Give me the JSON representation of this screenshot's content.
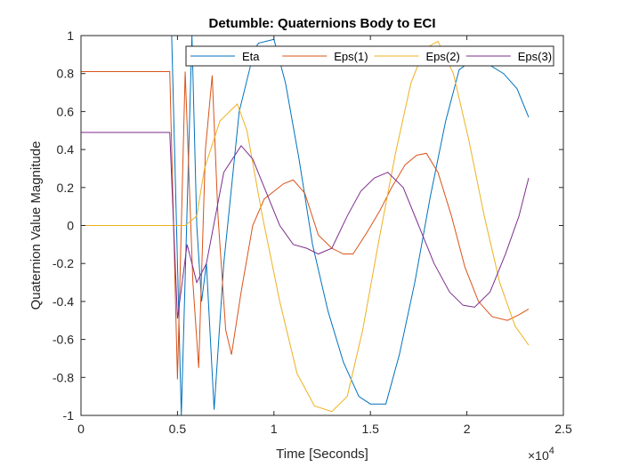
{
  "chart_data": {
    "type": "line",
    "title": "Detumble: Quaternions Body to ECI",
    "xlabel": "Time [Seconds]",
    "ylabel": "Quaternion Value Magnitude",
    "xlim": [
      0,
      25000
    ],
    "ylim": [
      -1,
      1
    ],
    "x_ticks": [
      0,
      5000,
      10000,
      15000,
      20000,
      25000
    ],
    "x_tick_labels": [
      "0",
      "0.5",
      "1",
      "1.5",
      "2",
      "2.5"
    ],
    "x_exponent_label": "×10",
    "x_exponent_power": "4",
    "y_ticks": [
      -1,
      -0.8,
      -0.6,
      -0.4,
      -0.2,
      0,
      0.2,
      0.4,
      0.6,
      0.8,
      1
    ],
    "y_tick_labels": [
      "-1",
      "-0.8",
      "-0.6",
      "-0.4",
      "-0.2",
      "0",
      "0.2",
      "0.4",
      "0.6",
      "0.8",
      "1"
    ],
    "grid": false,
    "legend_position": "top-right",
    "legend_orientation": "horizontal",
    "series": [
      {
        "name": "Eta",
        "color": "#0072BD",
        "points": [
          [
            0,
            1.0
          ],
          [
            4700,
            1.0
          ],
          [
            5200,
            -1.0
          ],
          [
            5750,
            1.0
          ],
          [
            6000,
            0.0
          ],
          [
            6250,
            -0.4
          ],
          [
            6500,
            -0.2
          ],
          [
            6900,
            -0.97
          ],
          [
            7400,
            -0.2
          ],
          [
            8200,
            0.6
          ],
          [
            9000,
            0.93
          ],
          [
            9200,
            0.96
          ],
          [
            10000,
            0.98
          ],
          [
            10600,
            0.75
          ],
          [
            11300,
            0.35
          ],
          [
            12000,
            -0.1
          ],
          [
            12800,
            -0.45
          ],
          [
            13600,
            -0.72
          ],
          [
            14400,
            -0.9
          ],
          [
            15000,
            -0.94
          ],
          [
            15800,
            -0.94
          ],
          [
            16500,
            -0.68
          ],
          [
            17300,
            -0.3
          ],
          [
            18100,
            0.15
          ],
          [
            18900,
            0.55
          ],
          [
            19600,
            0.82
          ],
          [
            20400,
            0.88
          ],
          [
            21100,
            0.85
          ],
          [
            21900,
            0.8
          ],
          [
            22600,
            0.72
          ],
          [
            23200,
            0.57
          ]
        ]
      },
      {
        "name": "Eps(1)",
        "color": "#D95319",
        "points": [
          [
            0,
            0.81
          ],
          [
            4600,
            0.81
          ],
          [
            5000,
            -0.81
          ],
          [
            5400,
            0.81
          ],
          [
            5800,
            -0.3
          ],
          [
            6100,
            -0.75
          ],
          [
            6450,
            0.4
          ],
          [
            6800,
            0.79
          ],
          [
            7100,
            0.05
          ],
          [
            7500,
            -0.55
          ],
          [
            7800,
            -0.68
          ],
          [
            8300,
            -0.35
          ],
          [
            8900,
            0.0
          ],
          [
            9500,
            0.14
          ],
          [
            10500,
            0.22
          ],
          [
            11000,
            0.24
          ],
          [
            11600,
            0.17
          ],
          [
            12300,
            -0.05
          ],
          [
            13000,
            -0.12
          ],
          [
            13600,
            -0.15
          ],
          [
            14100,
            -0.15
          ],
          [
            14800,
            -0.04
          ],
          [
            15500,
            0.08
          ],
          [
            16100,
            0.2
          ],
          [
            16800,
            0.32
          ],
          [
            17400,
            0.37
          ],
          [
            17900,
            0.38
          ],
          [
            18500,
            0.28
          ],
          [
            19200,
            0.05
          ],
          [
            19900,
            -0.22
          ],
          [
            20600,
            -0.4
          ],
          [
            21300,
            -0.48
          ],
          [
            22100,
            -0.5
          ],
          [
            22700,
            -0.47
          ],
          [
            23200,
            -0.44
          ]
        ]
      },
      {
        "name": "Eps(2)",
        "color": "#EDB120",
        "points": [
          [
            0,
            0.0
          ],
          [
            5400,
            0.0
          ],
          [
            6000,
            0.05
          ],
          [
            6400,
            0.3
          ],
          [
            7200,
            0.55
          ],
          [
            8100,
            0.64
          ],
          [
            8600,
            0.5
          ],
          [
            9400,
            0.05
          ],
          [
            10300,
            -0.4
          ],
          [
            11200,
            -0.78
          ],
          [
            12100,
            -0.95
          ],
          [
            13000,
            -0.98
          ],
          [
            13800,
            -0.9
          ],
          [
            14600,
            -0.55
          ],
          [
            15400,
            -0.1
          ],
          [
            16300,
            0.38
          ],
          [
            17100,
            0.75
          ],
          [
            17800,
            0.93
          ],
          [
            18500,
            0.97
          ],
          [
            19300,
            0.8
          ],
          [
            20100,
            0.45
          ],
          [
            20900,
            0.05
          ],
          [
            21700,
            -0.3
          ],
          [
            22500,
            -0.53
          ],
          [
            23200,
            -0.63
          ]
        ]
      },
      {
        "name": "Eps(3)",
        "color": "#7E2F8E",
        "points": [
          [
            0,
            0.49
          ],
          [
            4600,
            0.49
          ],
          [
            5000,
            -0.49
          ],
          [
            5500,
            -0.1
          ],
          [
            6000,
            -0.3
          ],
          [
            6500,
            -0.2
          ],
          [
            7400,
            0.28
          ],
          [
            8300,
            0.42
          ],
          [
            8900,
            0.35
          ],
          [
            9500,
            0.2
          ],
          [
            10300,
            0.0
          ],
          [
            11000,
            -0.1
          ],
          [
            11700,
            -0.12
          ],
          [
            12300,
            -0.15
          ],
          [
            13000,
            -0.12
          ],
          [
            13800,
            0.05
          ],
          [
            14500,
            0.18
          ],
          [
            15200,
            0.25
          ],
          [
            15900,
            0.28
          ],
          [
            16700,
            0.2
          ],
          [
            17500,
            0.0
          ],
          [
            18300,
            -0.2
          ],
          [
            19100,
            -0.35
          ],
          [
            19800,
            -0.42
          ],
          [
            20400,
            -0.43
          ],
          [
            21200,
            -0.35
          ],
          [
            22000,
            -0.15
          ],
          [
            22700,
            0.05
          ],
          [
            23200,
            0.25
          ]
        ]
      }
    ]
  }
}
